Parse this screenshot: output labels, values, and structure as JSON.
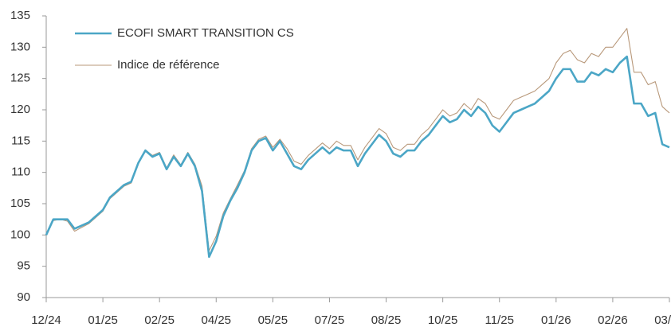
{
  "chart_data": {
    "type": "line",
    "categories": [
      "12/24",
      null,
      null,
      null,
      null,
      null,
      null,
      null,
      "01/25",
      null,
      null,
      null,
      null,
      null,
      null,
      null,
      "02/25",
      null,
      null,
      null,
      null,
      null,
      null,
      null,
      "04/25",
      null,
      null,
      null,
      null,
      null,
      null,
      null,
      "05/25",
      null,
      null,
      null,
      null,
      null,
      null,
      null,
      "07/25",
      null,
      null,
      null,
      null,
      null,
      null,
      null,
      "08/25",
      null,
      null,
      null,
      null,
      null,
      null,
      null,
      "10/25",
      null,
      null,
      null,
      null,
      null,
      null,
      null,
      "11/25",
      null,
      null,
      null,
      null,
      null,
      null,
      null,
      "01/26",
      null,
      null,
      null,
      null,
      null,
      null,
      null,
      "02/26",
      null,
      null,
      null,
      null,
      null,
      null,
      null,
      "03/26"
    ],
    "series": [
      {
        "name": "ECOFI SMART TRANSITION CS",
        "color": "#4ba6c6",
        "width": 2.6,
        "values": [
          100,
          102.5,
          102.5,
          102.5,
          101,
          101.5,
          102,
          103,
          104,
          106,
          107,
          108,
          108.5,
          111.5,
          113.5,
          112.5,
          113,
          110.5,
          112.5,
          111,
          113,
          111,
          107,
          96.5,
          99,
          103,
          105.5,
          107.5,
          110,
          113.5,
          115,
          115.5,
          113.5,
          115,
          113,
          111,
          110.5,
          112,
          113,
          114,
          113,
          114,
          113.5,
          113.5,
          111,
          113,
          114.5,
          116,
          115,
          113,
          112.5,
          113.5,
          113.5,
          115,
          116,
          117.5,
          119,
          118,
          118.5,
          120,
          119,
          120.5,
          119.5,
          117.5,
          116.5,
          118,
          119.5,
          120,
          120.5,
          121,
          122,
          123,
          125,
          126.5,
          126.5,
          124.5,
          124.5,
          126,
          125.5,
          126.5,
          126,
          127.5,
          128.5,
          121,
          121,
          119,
          119.5,
          114.5,
          114
        ]
      },
      {
        "name": "Indice de référence",
        "color": "#b8987a",
        "width": 1.1,
        "values": [
          100,
          102.3,
          102.5,
          102.2,
          100.6,
          101.2,
          101.8,
          102.8,
          103.8,
          105.8,
          106.8,
          107.8,
          108.3,
          111.5,
          113.6,
          112.7,
          113.2,
          110.7,
          112.8,
          111.2,
          113.2,
          111.3,
          107.8,
          97.5,
          99.8,
          103.5,
          105.8,
          108,
          110.3,
          113.8,
          115.3,
          115.8,
          114,
          115.3,
          113.8,
          111.8,
          111.3,
          112.7,
          113.7,
          114.7,
          113.8,
          115,
          114.3,
          114.3,
          112,
          114,
          115.5,
          117,
          116.2,
          114,
          113.5,
          114.5,
          114.5,
          116,
          117,
          118.5,
          120,
          119,
          119.5,
          121,
          120,
          121.8,
          121,
          119,
          118.5,
          120,
          121.5,
          122,
          122.5,
          123,
          124,
          125,
          127.5,
          129,
          129.5,
          128,
          127.5,
          129,
          128.5,
          130,
          130,
          131.5,
          133,
          126,
          126,
          124,
          124.5,
          120.5,
          119.5
        ]
      }
    ],
    "ylim": [
      90,
      135
    ],
    "yticks": [
      90,
      95,
      100,
      105,
      110,
      115,
      120,
      125,
      130,
      135
    ],
    "grid": false,
    "legend": "upper left"
  }
}
